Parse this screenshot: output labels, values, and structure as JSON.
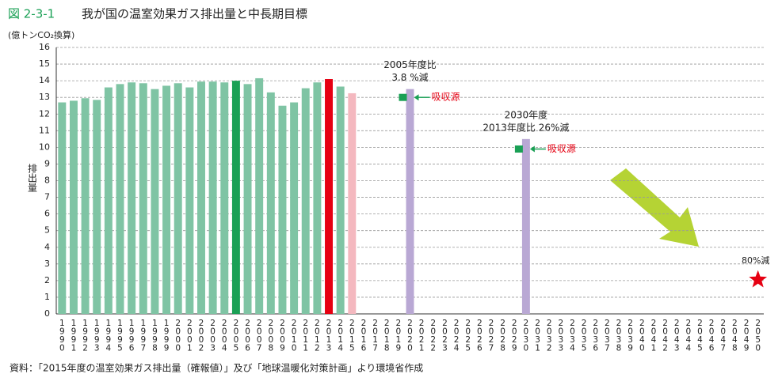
{
  "chart_data": {
    "type": "bar",
    "figure_number": "図 2-3-1",
    "title": "我が国の温室効果ガス排出量と中長期目標",
    "unit_label": "(億トンCO₂換算)",
    "y_label": "排出量",
    "source": "資料：「2015年度の温室効果ガス排出量（確報値）」及び「地球温暖化対策計画」より環境省作成",
    "categories": [
      "1990",
      "1991",
      "1992",
      "1993",
      "1994",
      "1995",
      "1996",
      "1997",
      "1998",
      "1999",
      "2000",
      "2001",
      "2002",
      "2003",
      "2004",
      "2005",
      "2006",
      "2007",
      "2008",
      "2009",
      "2010",
      "2011",
      "2012",
      "2013",
      "2014",
      "2015",
      "2016",
      "2017",
      "2018",
      "2019",
      "2020",
      "2021",
      "2022",
      "2023",
      "2024",
      "2025",
      "2026",
      "2027",
      "2028",
      "2029",
      "2030",
      "2031",
      "2032",
      "2033",
      "2034",
      "2035",
      "2036",
      "2037",
      "2038",
      "2039",
      "2040",
      "2041",
      "2042",
      "2043",
      "2044",
      "2045",
      "2046",
      "2047",
      "2048",
      "2049",
      "2050"
    ],
    "values": [
      12.7,
      12.8,
      12.95,
      12.85,
      13.6,
      13.8,
      13.9,
      13.85,
      13.5,
      13.7,
      13.85,
      13.6,
      13.95,
      13.95,
      13.9,
      14.0,
      13.8,
      14.15,
      13.3,
      12.5,
      12.7,
      13.55,
      13.9,
      14.1,
      13.65,
      13.25,
      null,
      null,
      null,
      null,
      13.5,
      null,
      null,
      null,
      null,
      null,
      null,
      null,
      null,
      null,
      10.5,
      null,
      null,
      null,
      null,
      null,
      null,
      null,
      null,
      null,
      null,
      null,
      null,
      null,
      null,
      null,
      null,
      null,
      null,
      null,
      null
    ],
    "colors": [
      "#7fc4a4",
      "#7fc4a4",
      "#7fc4a4",
      "#7fc4a4",
      "#7fc4a4",
      "#7fc4a4",
      "#7fc4a4",
      "#7fc4a4",
      "#7fc4a4",
      "#7fc4a4",
      "#7fc4a4",
      "#7fc4a4",
      "#7fc4a4",
      "#7fc4a4",
      "#7fc4a4",
      "#1aa055",
      "#7fc4a4",
      "#7fc4a4",
      "#7fc4a4",
      "#7fc4a4",
      "#7fc4a4",
      "#7fc4a4",
      "#7fc4a4",
      "#e60012",
      "#7fc4a4",
      "#f4b8bf",
      null,
      null,
      null,
      null,
      "#b9a8d4",
      null,
      null,
      null,
      null,
      null,
      null,
      null,
      null,
      null,
      "#b9a8d4",
      null,
      null,
      null,
      null,
      null,
      null,
      null,
      null,
      null,
      null,
      null,
      null,
      null,
      null,
      null,
      null,
      null,
      null,
      null,
      null
    ],
    "sink_label": "吸収源",
    "sink_color": "#1aa055",
    "sinks": [
      {
        "at": "2020",
        "value": 13.0
      },
      {
        "at": "2030",
        "value": 9.9
      }
    ],
    "annotations": [
      {
        "at": "2020",
        "lines": [
          "2005年度比",
          "3.8 %減"
        ]
      },
      {
        "at": "2030",
        "lines": [
          "2030年度",
          "2013年度比 26%減"
        ]
      }
    ],
    "star": {
      "at": "2050",
      "value": 2.05,
      "color": "#e60012",
      "label": "80%減"
    },
    "ylim": [
      0,
      16
    ],
    "yticks": [
      0,
      1,
      2,
      3,
      4,
      5,
      6,
      7,
      8,
      9,
      10,
      11,
      12,
      13,
      14,
      15,
      16
    ],
    "grid": true
  }
}
